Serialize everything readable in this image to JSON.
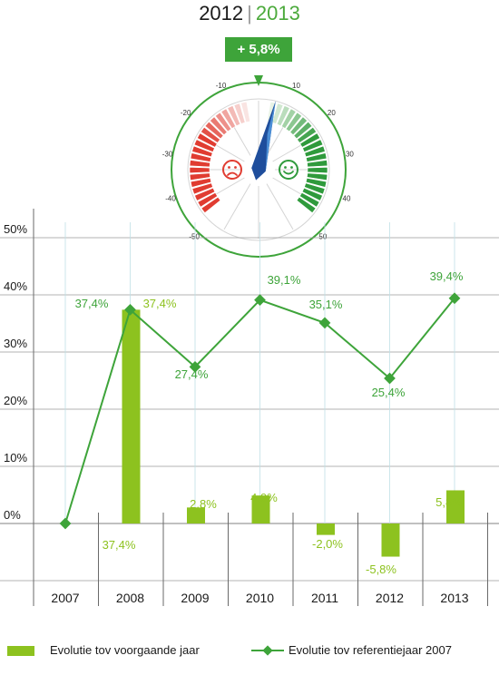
{
  "header": {
    "year_prev": "2012",
    "year_sep": "|",
    "year_current": "2013",
    "change_badge": "+ 5,8%"
  },
  "gauge": {
    "value": 5.8,
    "ticks_left": [
      "-10",
      "-20",
      "-30",
      "-40",
      "-50"
    ],
    "ticks_right": [
      "10",
      "20",
      "30",
      "40",
      "50"
    ],
    "colors": {
      "negative": "#e03c31",
      "positive": "#2f9a3c",
      "needle": "#1f4e9c",
      "ring": "#3ea43a"
    }
  },
  "chart_data": {
    "type": "bar",
    "categories": [
      "2007",
      "2008",
      "2009",
      "2010",
      "2011",
      "2012",
      "2013"
    ],
    "series": [
      {
        "name": "Evolutie tov voorgaande jaar",
        "type": "bar",
        "color": "#8dc21f",
        "values": [
          0,
          37.4,
          2.8,
          4.9,
          -2.0,
          -5.8,
          5.8
        ],
        "labels": [
          "",
          "37,4%",
          "2,8%",
          "4,9%",
          "-2,0%",
          "-5,8%",
          "5,8%"
        ]
      },
      {
        "name": "Evolutie tov referentiejaar 2007",
        "type": "line",
        "color": "#3ea43a",
        "values": [
          0,
          37.4,
          27.4,
          39.1,
          35.1,
          25.4,
          39.4
        ],
        "labels": [
          "",
          "37,4%",
          "27,4%",
          "39,1%",
          "35,1%",
          "25,4%",
          "39,4%"
        ]
      }
    ],
    "yticks": [
      "50%",
      "40%",
      "30%",
      "20%",
      "10%",
      "0%"
    ],
    "ylim": [
      -10,
      50
    ],
    "legend_position": "bottom"
  },
  "legend": {
    "bar_label": "Evolutie tov voorgaande jaar",
    "line_label": "Evolutie tov referentiejaar 2007"
  }
}
